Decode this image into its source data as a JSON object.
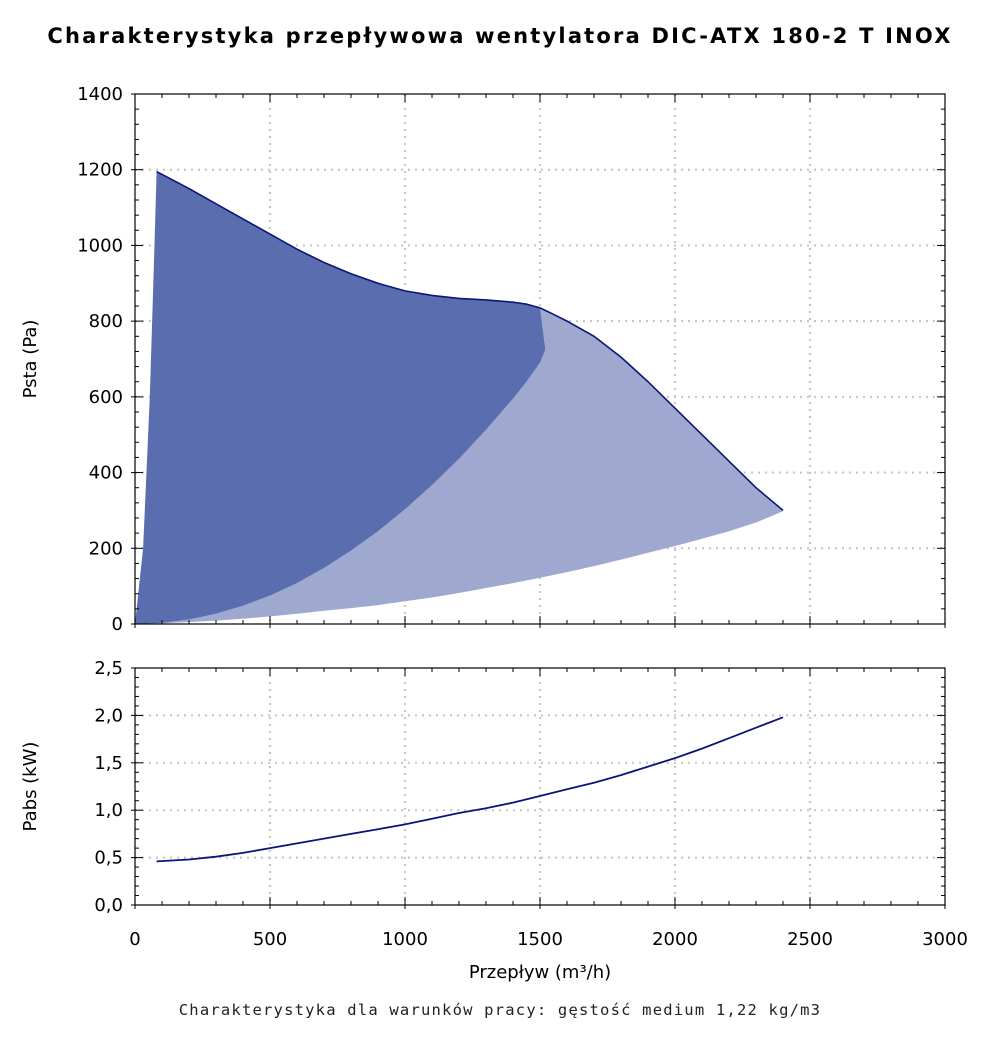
{
  "title": "Charakterystyka przepływowa wentylatora DIC-ATX 180-2 T INOX",
  "footnote": "Charakterystyka dla warunków pracy: gęstość medium 1,22 kg/m3",
  "colors": {
    "dark_fill": "#5a6eaf",
    "light_fill": "#9fa9d0",
    "curve": "#0c1478",
    "grid": "#c8c8c8"
  },
  "chart_data": [
    {
      "type": "area",
      "name": "pressure",
      "xlabel": "Przepływ (m³/h)",
      "ylabel": "Psta (Pa)",
      "xlim": [
        0,
        3000
      ],
      "ylim": [
        0,
        1400
      ],
      "x_ticks": [
        "0",
        "500",
        "1000",
        "1500",
        "2000",
        "2500",
        "3000"
      ],
      "y_ticks": [
        "0",
        "200",
        "400",
        "600",
        "800",
        "1000",
        "1200",
        "1400"
      ],
      "grid": true,
      "series": [
        {
          "role": "upper-envelope",
          "points": [
            [
              80,
              1195
            ],
            [
              200,
              1150
            ],
            [
              300,
              1110
            ],
            [
              400,
              1070
            ],
            [
              500,
              1030
            ],
            [
              600,
              990
            ],
            [
              700,
              955
            ],
            [
              800,
              925
            ],
            [
              900,
              900
            ],
            [
              1000,
              880
            ],
            [
              1100,
              868
            ],
            [
              1200,
              860
            ],
            [
              1300,
              856
            ],
            [
              1400,
              850
            ],
            [
              1450,
              845
            ],
            [
              1500,
              835
            ],
            [
              1550,
              818
            ],
            [
              1600,
              800
            ],
            [
              1700,
              760
            ],
            [
              1800,
              705
            ],
            [
              1900,
              640
            ],
            [
              2000,
              570
            ],
            [
              2100,
              500
            ],
            [
              2200,
              430
            ],
            [
              2300,
              360
            ],
            [
              2400,
              300
            ]
          ]
        },
        {
          "role": "max-efficiency-boundary",
          "points": [
            [
              0,
              0
            ],
            [
              100,
              3
            ],
            [
              200,
              12
            ],
            [
              300,
              27
            ],
            [
              400,
              48
            ],
            [
              500,
              75
            ],
            [
              600,
              108
            ],
            [
              700,
              148
            ],
            [
              800,
              194
            ],
            [
              900,
              245
            ],
            [
              1000,
              303
            ],
            [
              1100,
              367
            ],
            [
              1200,
              436
            ],
            [
              1300,
              513
            ],
            [
              1400,
              595
            ],
            [
              1450,
              640
            ],
            [
              1500,
              690
            ],
            [
              1520,
              725
            ]
          ]
        },
        {
          "role": "lower-boundary",
          "points": [
            [
              0,
              0
            ],
            [
              100,
              2
            ],
            [
              200,
              5
            ],
            [
              300,
              9
            ],
            [
              400,
              14
            ],
            [
              500,
              20
            ],
            [
              600,
              27
            ],
            [
              700,
              35
            ],
            [
              800,
              42
            ],
            [
              900,
              50
            ],
            [
              1000,
              60
            ],
            [
              1100,
              70
            ],
            [
              1200,
              82
            ],
            [
              1300,
              95
            ],
            [
              1400,
              108
            ],
            [
              1500,
              122
            ],
            [
              1600,
              137
            ],
            [
              1700,
              153
            ],
            [
              1800,
              170
            ],
            [
              1900,
              188
            ],
            [
              2000,
              206
            ],
            [
              2100,
              225
            ],
            [
              2200,
              245
            ],
            [
              2300,
              268
            ],
            [
              2400,
              298
            ]
          ]
        },
        {
          "role": "left-boundary",
          "points": [
            [
              0,
              0
            ],
            [
              30,
              200
            ],
            [
              55,
              600
            ],
            [
              70,
              950
            ],
            [
              80,
              1195
            ]
          ]
        }
      ]
    },
    {
      "type": "line",
      "name": "power",
      "xlabel": "Przepływ (m³/h)",
      "ylabel": "Pabs (kW)",
      "xlim": [
        0,
        3000
      ],
      "ylim": [
        0,
        2.5
      ],
      "x_ticks": [
        "0",
        "500",
        "1000",
        "1500",
        "2000",
        "2500",
        "3000"
      ],
      "y_ticks": [
        "0,0",
        "0,5",
        "1,0",
        "1,5",
        "2,0",
        "2,5"
      ],
      "grid": true,
      "series": [
        {
          "points": [
            [
              80,
              0.46
            ],
            [
              200,
              0.48
            ],
            [
              300,
              0.51
            ],
            [
              400,
              0.55
            ],
            [
              500,
              0.6
            ],
            [
              600,
              0.65
            ],
            [
              700,
              0.7
            ],
            [
              800,
              0.75
            ],
            [
              900,
              0.8
            ],
            [
              1000,
              0.85
            ],
            [
              1100,
              0.91
            ],
            [
              1200,
              0.97
            ],
            [
              1300,
              1.02
            ],
            [
              1400,
              1.08
            ],
            [
              1500,
              1.15
            ],
            [
              1600,
              1.22
            ],
            [
              1700,
              1.29
            ],
            [
              1800,
              1.37
            ],
            [
              1900,
              1.46
            ],
            [
              2000,
              1.55
            ],
            [
              2100,
              1.65
            ],
            [
              2200,
              1.76
            ],
            [
              2300,
              1.87
            ],
            [
              2400,
              1.98
            ]
          ]
        }
      ]
    }
  ]
}
